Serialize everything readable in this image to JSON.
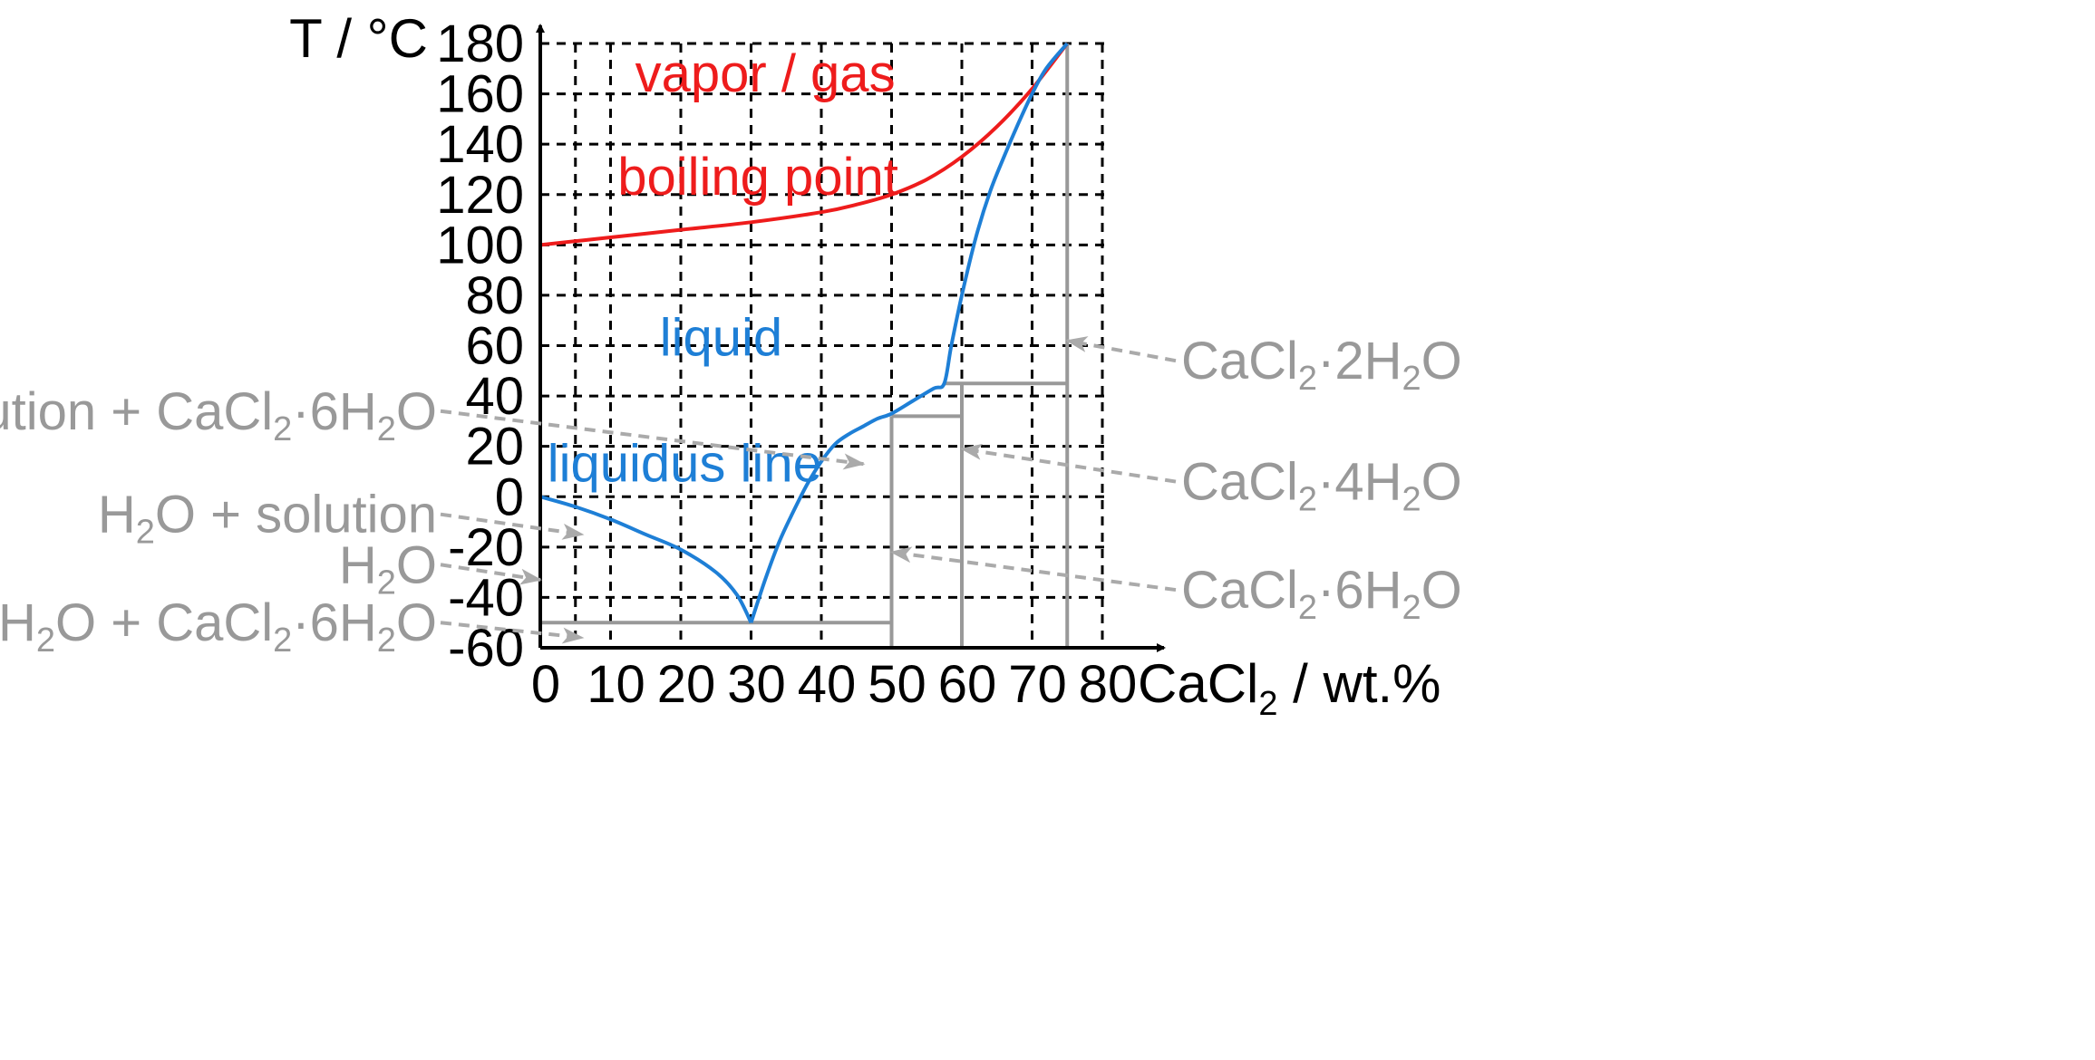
{
  "chart_data": {
    "type": "line",
    "x_axis": {
      "label_main": "CaCl",
      "label_sub": "2",
      "label_rest": " / wt.%",
      "range": [
        0,
        90
      ],
      "ticks": [
        0,
        10,
        20,
        30,
        40,
        50,
        60,
        70,
        80
      ]
    },
    "y_axis": {
      "label": "T / °C",
      "range": [
        -60,
        180
      ],
      "ticks": [
        -60,
        -40,
        -20,
        0,
        20,
        40,
        60,
        80,
        100,
        120,
        140,
        160,
        180
      ]
    },
    "grid": true,
    "colors": {
      "boiling": "#ee1c1c",
      "liquidus": "#1e7fd6",
      "phase": "#999999",
      "grid": "#000000"
    },
    "series": [
      {
        "name": "boiling point",
        "color": "#ee1c1c",
        "points": [
          [
            0,
            100
          ],
          [
            10,
            103
          ],
          [
            20,
            106
          ],
          [
            30,
            109
          ],
          [
            40,
            113
          ],
          [
            45,
            116
          ],
          [
            50,
            120
          ],
          [
            55,
            126
          ],
          [
            60,
            135
          ],
          [
            65,
            147
          ],
          [
            70,
            162
          ],
          [
            75,
            180
          ]
        ]
      },
      {
        "name": "liquidus line",
        "color": "#1e7fd6",
        "points": [
          [
            0,
            0
          ],
          [
            5,
            -4
          ],
          [
            10,
            -9
          ],
          [
            15,
            -15
          ],
          [
            20,
            -21
          ],
          [
            25,
            -30
          ],
          [
            28,
            -39
          ],
          [
            30,
            -50
          ],
          [
            32,
            -33
          ],
          [
            34,
            -18
          ],
          [
            36,
            -6
          ],
          [
            38,
            5
          ],
          [
            40,
            14
          ],
          [
            42,
            21
          ],
          [
            44,
            25
          ],
          [
            46,
            28
          ],
          [
            48,
            31
          ],
          [
            50,
            33
          ],
          [
            53,
            38
          ],
          [
            56,
            43
          ],
          [
            57.5,
            45
          ],
          [
            58.5,
            60
          ],
          [
            60,
            80
          ],
          [
            62,
            103
          ],
          [
            64,
            121
          ],
          [
            66,
            135
          ],
          [
            68,
            148
          ],
          [
            70,
            160
          ],
          [
            72,
            170
          ],
          [
            75,
            180
          ]
        ]
      }
    ],
    "phase_lines": [
      [
        [
          0,
          -50
        ],
        [
          50,
          -50
        ]
      ],
      [
        [
          50,
          -60
        ],
        [
          50,
          32
        ]
      ],
      [
        [
          50,
          32
        ],
        [
          60,
          32
        ]
      ],
      [
        [
          60,
          -60
        ],
        [
          60,
          45
        ]
      ],
      [
        [
          57.5,
          45
        ],
        [
          75,
          45
        ]
      ],
      [
        [
          75,
          -60
        ],
        [
          75,
          180
        ]
      ]
    ],
    "region_labels": [
      {
        "text": "vapor / gas",
        "color": "#ee1c1c",
        "pos": [
          13.5,
          161
        ]
      },
      {
        "text": "boiling point",
        "color": "#ee1c1c",
        "pos": [
          11,
          120
        ]
      },
      {
        "text": "liquid",
        "color": "#1e7fd6",
        "pos": [
          17,
          56
        ]
      },
      {
        "text": "liquidus line",
        "color": "#1e7fd6",
        "pos": [
          1,
          6
        ]
      }
    ],
    "annotations": [
      {
        "parts": [
          {
            "t": "solution + CaCl"
          },
          {
            "t": "2",
            "sub": true
          },
          {
            "t": "·6H"
          },
          {
            "t": "2",
            "sub": true
          },
          {
            "t": "O"
          }
        ],
        "side": "left",
        "text_y": 34,
        "arrow_to": [
          46,
          13
        ]
      },
      {
        "parts": [
          {
            "t": "H"
          },
          {
            "t": "2",
            "sub": true
          },
          {
            "t": "O + solution"
          }
        ],
        "side": "left",
        "text_y": -7,
        "arrow_to": [
          6,
          -15
        ]
      },
      {
        "parts": [
          {
            "t": "H"
          },
          {
            "t": "2",
            "sub": true
          },
          {
            "t": "O"
          }
        ],
        "side": "left",
        "text_y": -27,
        "arrow_to": [
          0,
          -33
        ]
      },
      {
        "parts": [
          {
            "t": "H"
          },
          {
            "t": "2",
            "sub": true
          },
          {
            "t": "O + CaCl"
          },
          {
            "t": "2",
            "sub": true
          },
          {
            "t": "·6H"
          },
          {
            "t": "2",
            "sub": true
          },
          {
            "t": "O"
          }
        ],
        "side": "left",
        "text_y": -50,
        "arrow_to": [
          6,
          -56
        ]
      },
      {
        "parts": [
          {
            "t": "CaCl"
          },
          {
            "t": "2",
            "sub": true
          },
          {
            "t": "·2H"
          },
          {
            "t": "2",
            "sub": true
          },
          {
            "t": "O"
          }
        ],
        "side": "right",
        "text_y": 54,
        "arrow_to": [
          75,
          62
        ]
      },
      {
        "parts": [
          {
            "t": "CaCl"
          },
          {
            "t": "2",
            "sub": true
          },
          {
            "t": "·4H"
          },
          {
            "t": "2",
            "sub": true
          },
          {
            "t": "O"
          }
        ],
        "side": "right",
        "text_y": 6,
        "arrow_to": [
          60,
          19
        ]
      },
      {
        "parts": [
          {
            "t": "CaCl"
          },
          {
            "t": "2",
            "sub": true
          },
          {
            "t": "·6H"
          },
          {
            "t": "2",
            "sub": true
          },
          {
            "t": "O"
          }
        ],
        "side": "right",
        "text_y": -37,
        "arrow_to": [
          50,
          -22
        ]
      }
    ]
  }
}
